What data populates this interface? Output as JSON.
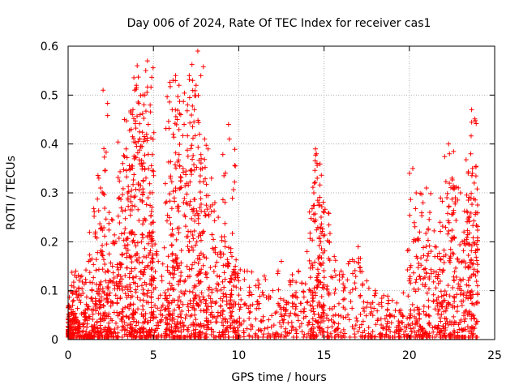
{
  "chart_data": {
    "type": "scatter",
    "title": "Day 006 of 2024, Rate Of TEC Index for receiver cas1",
    "xlabel": "GPS time / hours",
    "ylabel": "ROTI / TECUs",
    "xlim": [
      0,
      25
    ],
    "ylim": [
      0,
      0.6
    ],
    "xticks": [
      0,
      5,
      10,
      15,
      20,
      25
    ],
    "xtick_labels": [
      "0",
      "5",
      "10",
      "15",
      "20",
      "25"
    ],
    "yticks": [
      0,
      0.1,
      0.2,
      0.3,
      0.4,
      0.5,
      0.6
    ],
    "ytick_labels": [
      "0",
      "0.1",
      "0.2",
      "0.3",
      "0.4",
      "0.5",
      "0.6"
    ],
    "grid": true,
    "marker": "+",
    "marker_color": "#ff0000",
    "series": [
      {
        "name": "ROTI",
        "points": [
          [
            0.05,
            0.07
          ],
          [
            0.1,
            0.03
          ],
          [
            0.2,
            0.11
          ],
          [
            0.3,
            0.05
          ],
          [
            0.45,
            0.14
          ],
          [
            0.6,
            0.09
          ],
          [
            0.8,
            0.13
          ],
          [
            1.0,
            0.06
          ],
          [
            1.2,
            0.16
          ],
          [
            1.4,
            0.1
          ],
          [
            1.6,
            0.22
          ],
          [
            1.8,
            0.33
          ],
          [
            1.9,
            0.31
          ],
          [
            2.0,
            0.18
          ],
          [
            2.05,
            0.51
          ],
          [
            2.2,
            0.12
          ],
          [
            2.4,
            0.26
          ],
          [
            2.6,
            0.15
          ],
          [
            2.8,
            0.2
          ],
          [
            3.0,
            0.29
          ],
          [
            3.2,
            0.36
          ],
          [
            3.3,
            0.45
          ],
          [
            3.4,
            0.39
          ],
          [
            3.5,
            0.3
          ],
          [
            3.7,
            0.43
          ],
          [
            3.8,
            0.47
          ],
          [
            3.9,
            0.51
          ],
          [
            4.0,
            0.52
          ],
          [
            4.05,
            0.56
          ],
          [
            4.2,
            0.41
          ],
          [
            4.3,
            0.36
          ],
          [
            4.5,
            0.5
          ],
          [
            4.55,
            0.55
          ],
          [
            4.6,
            0.42
          ],
          [
            4.65,
            0.57
          ],
          [
            4.7,
            0.44
          ],
          [
            4.8,
            0.3
          ],
          [
            5.0,
            0.24
          ],
          [
            5.2,
            0.18
          ],
          [
            5.5,
            0.12
          ],
          [
            5.8,
            0.08
          ],
          [
            6.0,
            0.33
          ],
          [
            6.1,
            0.47
          ],
          [
            6.15,
            0.53
          ],
          [
            6.3,
            0.54
          ],
          [
            6.4,
            0.45
          ],
          [
            6.5,
            0.52
          ],
          [
            6.6,
            0.46
          ],
          [
            6.8,
            0.44
          ],
          [
            7.0,
            0.48
          ],
          [
            7.1,
            0.54
          ],
          [
            7.3,
            0.53
          ],
          [
            7.4,
            0.47
          ],
          [
            7.5,
            0.52
          ],
          [
            7.6,
            0.59
          ],
          [
            7.7,
            0.42
          ],
          [
            7.8,
            0.37
          ],
          [
            8.0,
            0.41
          ],
          [
            8.2,
            0.39
          ],
          [
            8.4,
            0.33
          ],
          [
            8.6,
            0.28
          ],
          [
            8.8,
            0.25
          ],
          [
            9.0,
            0.21
          ],
          [
            9.2,
            0.19
          ],
          [
            9.4,
            0.44
          ],
          [
            9.45,
            0.41
          ],
          [
            9.6,
            0.17
          ],
          [
            9.8,
            0.15
          ],
          [
            10.0,
            0.12
          ],
          [
            10.5,
            0.14
          ],
          [
            11.0,
            0.11
          ],
          [
            11.5,
            0.13
          ],
          [
            12.0,
            0.1
          ],
          [
            12.5,
            0.16
          ],
          [
            13.0,
            0.12
          ],
          [
            13.5,
            0.14
          ],
          [
            14.0,
            0.18
          ],
          [
            14.4,
            0.3
          ],
          [
            14.5,
            0.39
          ],
          [
            14.55,
            0.38
          ],
          [
            14.6,
            0.33
          ],
          [
            14.7,
            0.28
          ],
          [
            15.0,
            0.26
          ],
          [
            15.3,
            0.2
          ],
          [
            15.6,
            0.17
          ],
          [
            16.0,
            0.14
          ],
          [
            16.5,
            0.16
          ],
          [
            17.0,
            0.19
          ],
          [
            17.5,
            0.12
          ],
          [
            18.0,
            0.1
          ],
          [
            18.5,
            0.09
          ],
          [
            19.0,
            0.08
          ],
          [
            19.5,
            0.06
          ],
          [
            20.0,
            0.12
          ],
          [
            20.2,
            0.35
          ],
          [
            20.4,
            0.3
          ],
          [
            20.6,
            0.22
          ],
          [
            20.8,
            0.28
          ],
          [
            21.0,
            0.31
          ],
          [
            21.2,
            0.26
          ],
          [
            21.5,
            0.19
          ],
          [
            21.8,
            0.24
          ],
          [
            22.0,
            0.17
          ],
          [
            22.2,
            0.29
          ],
          [
            22.3,
            0.4
          ],
          [
            22.35,
            0.38
          ],
          [
            22.5,
            0.33
          ],
          [
            22.7,
            0.29
          ],
          [
            23.0,
            0.3
          ],
          [
            23.2,
            0.22
          ],
          [
            23.4,
            0.26
          ],
          [
            23.6,
            0.38
          ],
          [
            23.65,
            0.47
          ],
          [
            23.7,
            0.35
          ],
          [
            23.8,
            0.32
          ],
          [
            23.9,
            0.26
          ]
        ]
      }
    ]
  }
}
